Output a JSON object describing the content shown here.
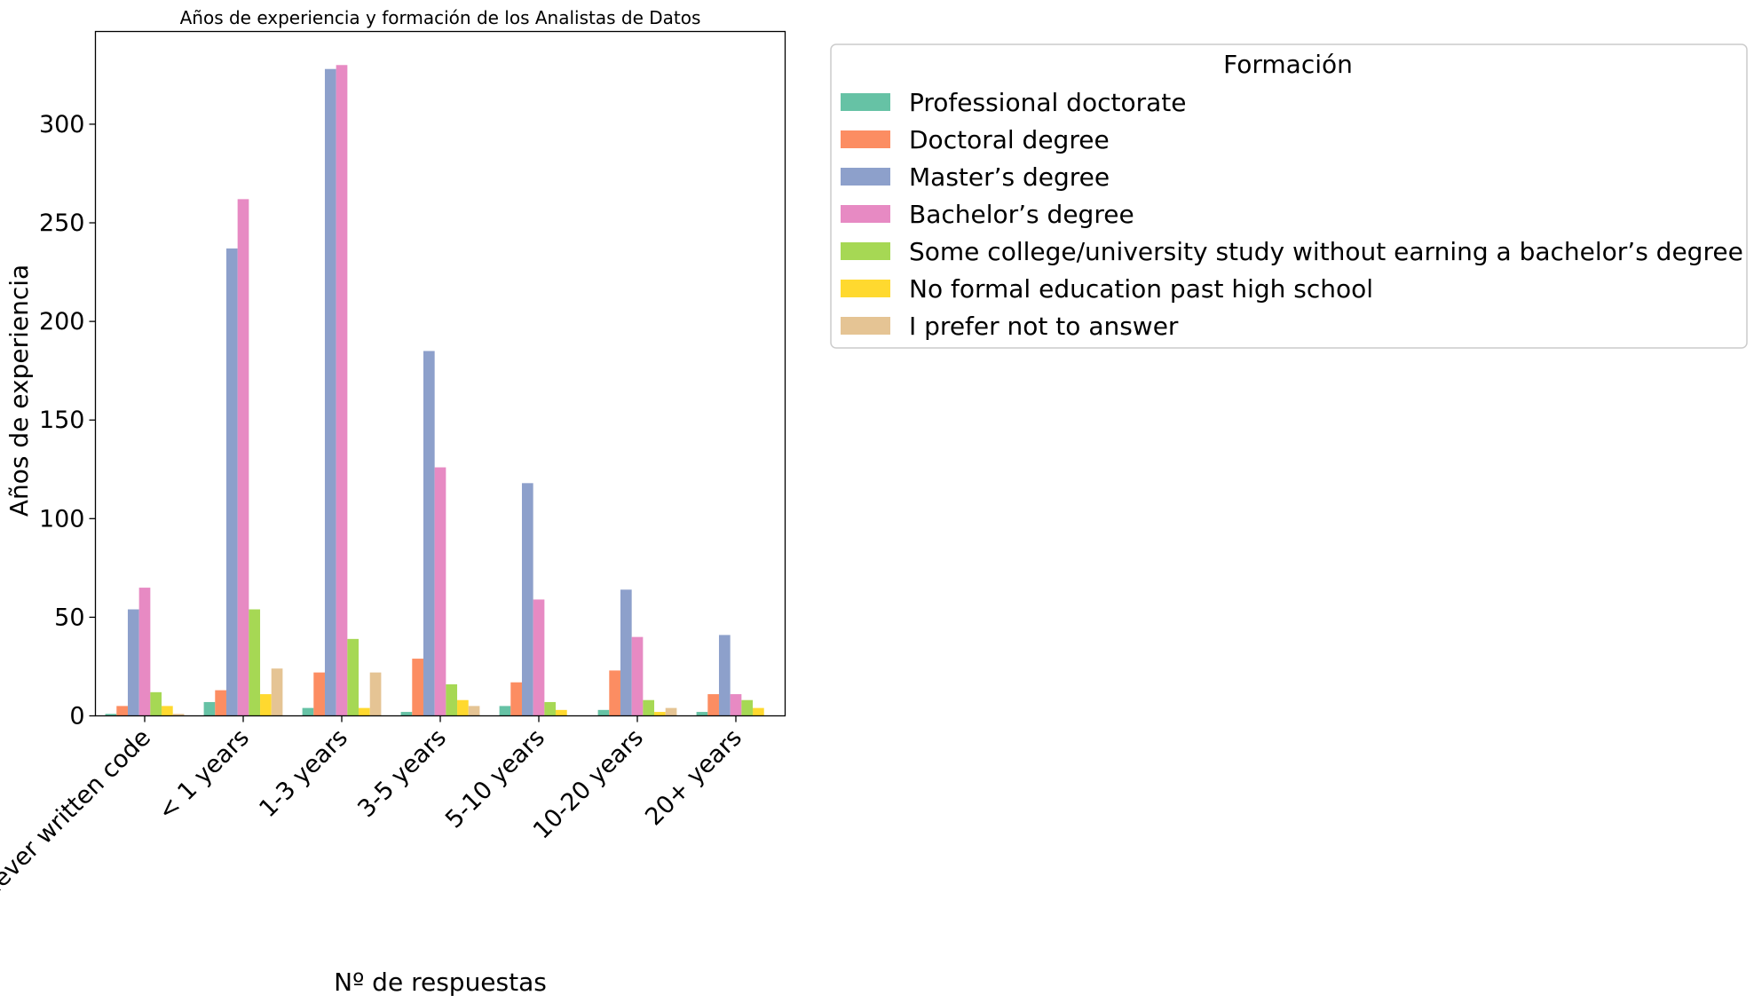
{
  "chart_data": {
    "type": "bar",
    "title": "Años de experiencia y formación de los Analistas de Datos",
    "xlabel": "Nº de respuestas",
    "ylabel": "Años de experiencia",
    "ylim": [
      0,
      347
    ],
    "yticks": [
      0,
      50,
      100,
      150,
      200,
      250,
      300
    ],
    "grid": false,
    "legend_title": "Formación",
    "legend_placement": "outside-right-top",
    "categories": [
      "I have never written code",
      "< 1 years",
      "1-3 years",
      "3-5 years",
      "5-10 years",
      "10-20 years",
      "20+ years"
    ],
    "series": [
      {
        "name": "Professional doctorate",
        "color": "#66c2a5",
        "values": [
          1,
          7,
          4,
          2,
          5,
          3,
          2
        ]
      },
      {
        "name": "Doctoral degree",
        "color": "#fc8d62",
        "values": [
          5,
          13,
          22,
          29,
          17,
          23,
          11
        ]
      },
      {
        "name": "Master’s degree",
        "color": "#8da0cb",
        "values": [
          54,
          237,
          328,
          185,
          118,
          64,
          41
        ]
      },
      {
        "name": "Bachelor’s degree",
        "color": "#e78ac3",
        "values": [
          65,
          262,
          330,
          126,
          59,
          40,
          11
        ]
      },
      {
        "name": "Some college/university study without earning a bachelor’s degree",
        "color": "#a6d854",
        "values": [
          12,
          54,
          39,
          16,
          7,
          8,
          8
        ]
      },
      {
        "name": "No formal education past high school",
        "color": "#ffd92f",
        "values": [
          5,
          11,
          4,
          8,
          3,
          2,
          4
        ]
      },
      {
        "name": "I prefer not to answer",
        "color": "#e5c494",
        "values": [
          1,
          24,
          22,
          5,
          0,
          4,
          0
        ]
      }
    ]
  }
}
